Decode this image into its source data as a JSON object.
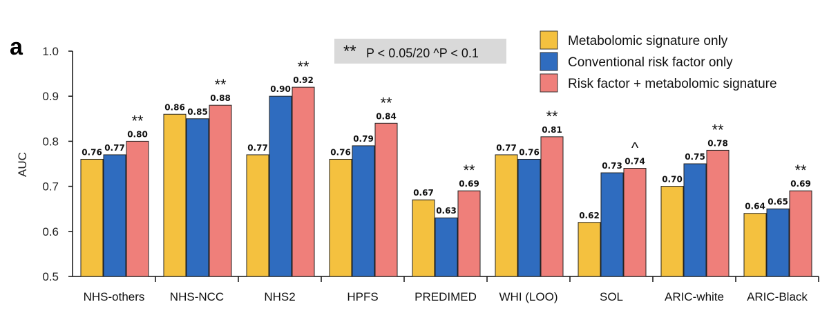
{
  "panel_label": "a",
  "chart_data": {
    "type": "bar",
    "ylabel": "AUC",
    "xlabel": "",
    "ylim": [
      0.5,
      1.0
    ],
    "yticks": [
      "0.5",
      "0.6",
      "0.7",
      "0.8",
      "0.9",
      "1.0"
    ],
    "grid": false,
    "legend_position": "top-right",
    "annotation": {
      "stars": "**",
      "text": "P < 0.05/20 ^P < 0.1"
    },
    "categories": [
      "NHS-others",
      "NHS-NCC",
      "NHS2",
      "HPFS",
      "PREDIMED",
      "WHI (LOO)",
      "SOL",
      "ARIC-white",
      "ARIC-Black"
    ],
    "series": [
      {
        "name": "Metabolomic signature only",
        "color": "#F4C13F",
        "values": [
          0.76,
          0.86,
          0.77,
          0.76,
          0.67,
          0.77,
          0.62,
          0.7,
          0.64
        ]
      },
      {
        "name": "Conventional risk factor only",
        "color": "#2F6CBF",
        "values": [
          0.77,
          0.85,
          0.9,
          0.79,
          0.63,
          0.76,
          0.73,
          0.75,
          0.65
        ]
      },
      {
        "name": "Risk factor + metabolomic signature",
        "color": "#EF7F7A",
        "values": [
          0.8,
          0.88,
          0.92,
          0.84,
          0.69,
          0.81,
          0.74,
          0.78,
          0.69
        ]
      }
    ],
    "significance": [
      "**",
      "**",
      "**",
      "**",
      "**",
      "**",
      "^",
      "**",
      "**"
    ]
  }
}
